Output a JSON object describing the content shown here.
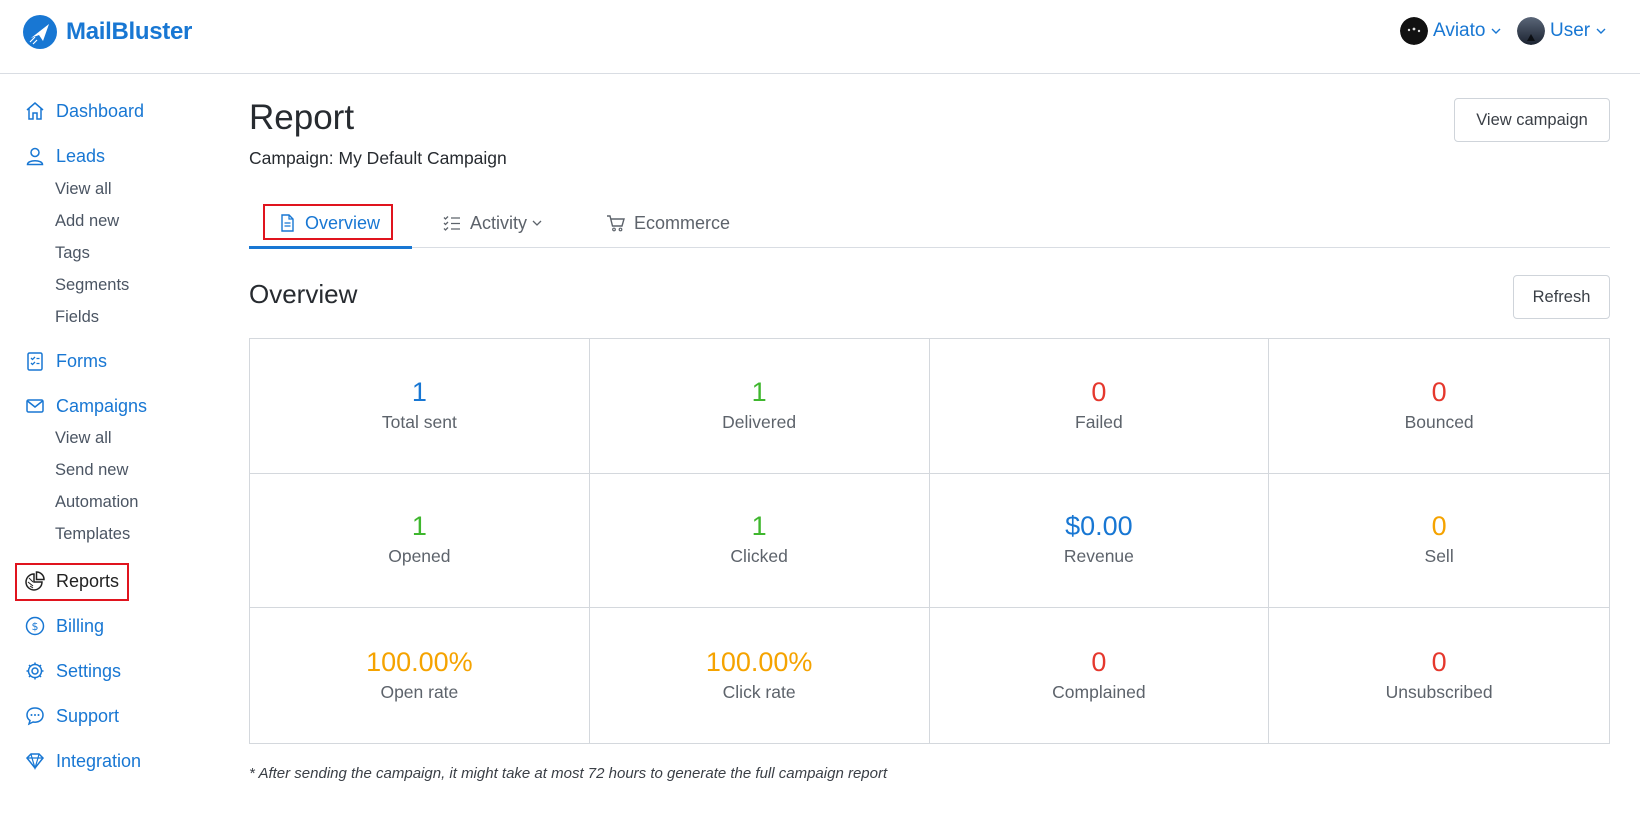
{
  "header": {
    "app_name": "MailBluster",
    "workspace": {
      "label": "Aviato",
      "avatar": "aviato-avatar"
    },
    "user": {
      "label": "User",
      "avatar": "user-avatar"
    }
  },
  "sidebar": {
    "items": [
      {
        "label": "Dashboard",
        "icon": "home-icon"
      },
      {
        "label": "Leads",
        "icon": "user-icon",
        "children": [
          "View all",
          "Add new",
          "Tags",
          "Segments",
          "Fields"
        ]
      },
      {
        "label": "Forms",
        "icon": "form-icon"
      },
      {
        "label": "Campaigns",
        "icon": "envelope-icon",
        "children": [
          "View all",
          "Send new",
          "Automation",
          "Templates"
        ]
      },
      {
        "label": "Reports",
        "icon": "pie-chart-icon",
        "active": true
      },
      {
        "label": "Billing",
        "icon": "dollar-icon"
      },
      {
        "label": "Settings",
        "icon": "gear-icon"
      },
      {
        "label": "Support",
        "icon": "chat-icon"
      },
      {
        "label": "Integration",
        "icon": "diamond-icon"
      }
    ]
  },
  "main": {
    "title": "Report",
    "campaign_label": "Campaign: My Default Campaign",
    "view_campaign_button": "View campaign",
    "tabs": [
      {
        "label": "Overview",
        "icon": "document-icon",
        "active": true
      },
      {
        "label": "Activity",
        "icon": "checklist-icon",
        "has_dropdown": true
      },
      {
        "label": "Ecommerce",
        "icon": "cart-icon"
      }
    ],
    "section_title": "Overview",
    "refresh_button": "Refresh",
    "stats": [
      {
        "value": "1",
        "label": "Total sent",
        "color": "#1877d3"
      },
      {
        "value": "1",
        "label": "Delivered",
        "color": "#3fb72e"
      },
      {
        "value": "0",
        "label": "Failed",
        "color": "#e5382d"
      },
      {
        "value": "0",
        "label": "Bounced",
        "color": "#e5382d"
      },
      {
        "value": "1",
        "label": "Opened",
        "color": "#3fb72e"
      },
      {
        "value": "1",
        "label": "Clicked",
        "color": "#3fb72e"
      },
      {
        "value": "$0.00",
        "label": "Revenue",
        "color": "#1877d3"
      },
      {
        "value": "0",
        "label": "Sell",
        "color": "#f5a300"
      },
      {
        "value": "100.00%",
        "label": "Open rate",
        "color": "#f5a300"
      },
      {
        "value": "100.00%",
        "label": "Click rate",
        "color": "#f5a300"
      },
      {
        "value": "0",
        "label": "Complained",
        "color": "#e5382d"
      },
      {
        "value": "0",
        "label": "Unsubscribed",
        "color": "#e5382d"
      }
    ],
    "footnote": "* After sending the campaign, it might take at most 72 hours to generate the full campaign report"
  },
  "colors": {
    "accent": "#1877d3",
    "highlight_box": "#e0141e"
  }
}
